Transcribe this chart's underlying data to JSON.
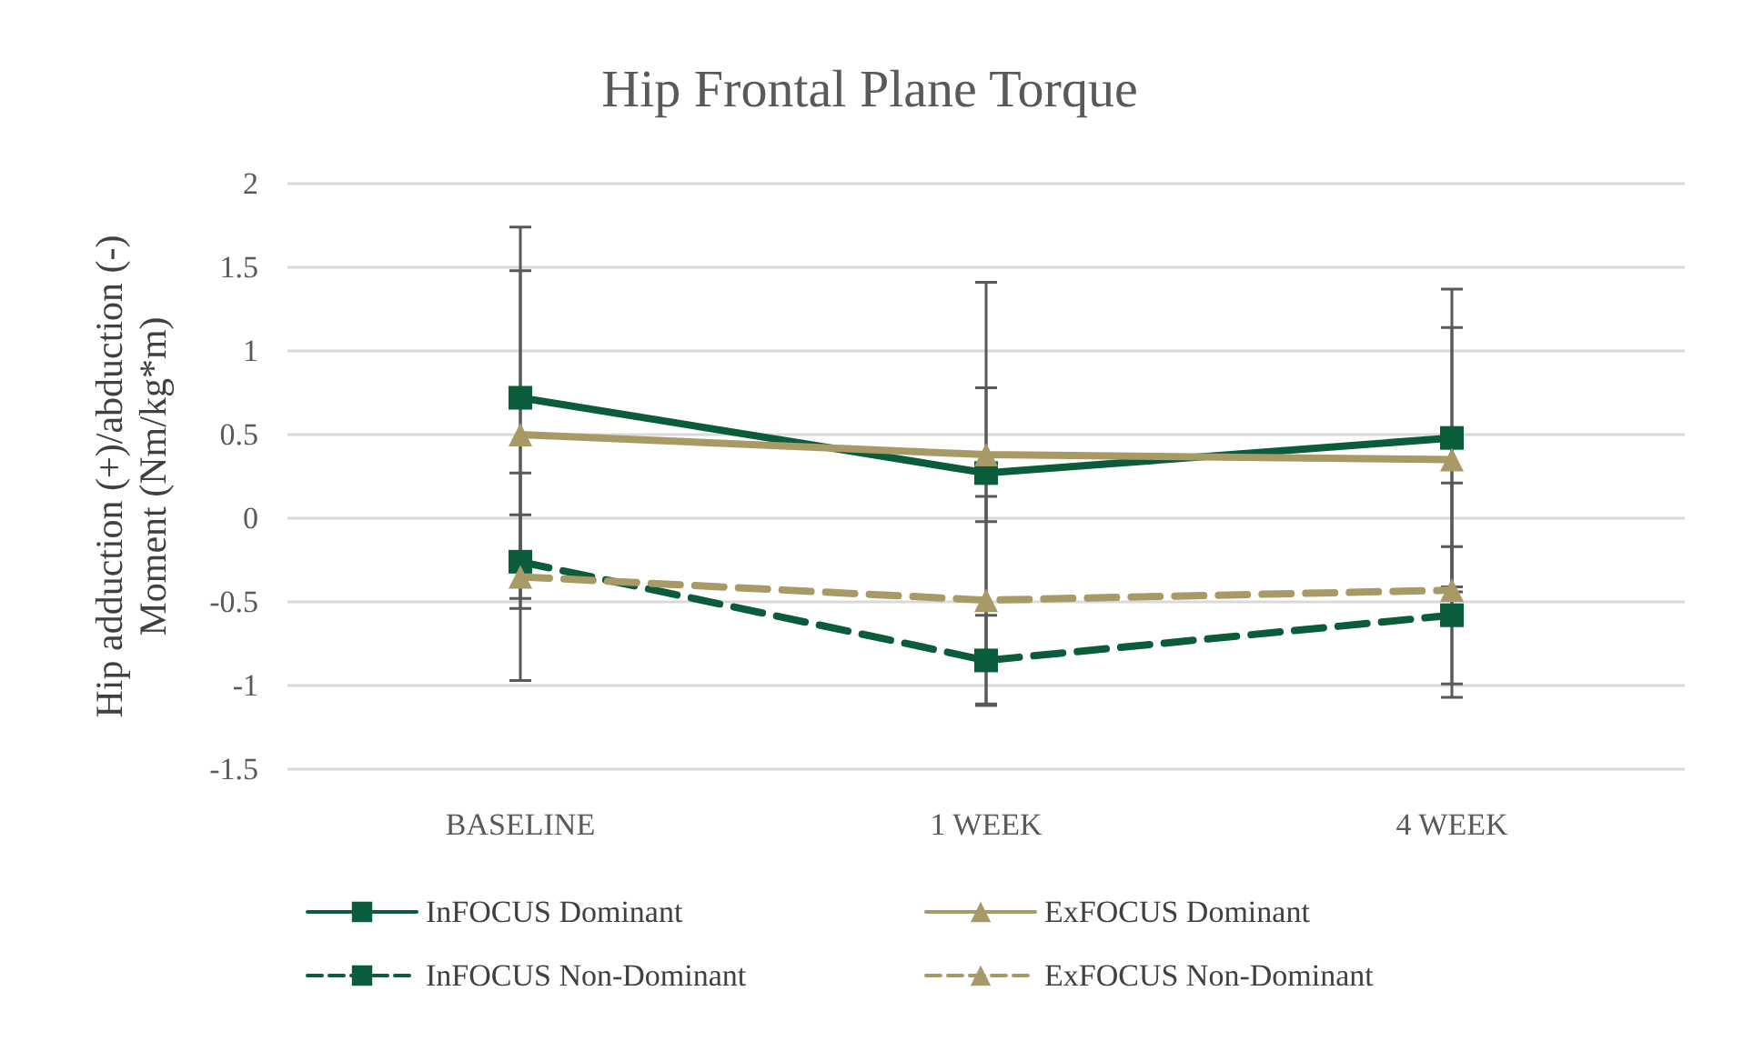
{
  "chart_data": {
    "type": "line",
    "title": "Hip Frontal Plane Torque",
    "ylabel": "Hip adduction (+)/abduction (-)\nMoment (Nm/kg*m)",
    "categories": [
      "BASELINE",
      "1 WEEK",
      "4 WEEK"
    ],
    "series": [
      {
        "name": "InFOCUS Dominant",
        "color": "#0b5c3a",
        "values": [
          0.72,
          0.27,
          0.48
        ],
        "errors": [
          1.02,
          1.14,
          0.89
        ],
        "marker": "square",
        "line_style": "solid"
      },
      {
        "name": "ExFOCUS Dominant",
        "color": "#a89a66",
        "values": [
          0.5,
          0.38,
          0.35
        ],
        "errors": [
          0.98,
          0.4,
          0.79
        ],
        "marker": "triangle",
        "line_style": "solid"
      },
      {
        "name": "InFOCUS Non-Dominant",
        "color": "#0b5c3a",
        "values": [
          -0.26,
          -0.85,
          -0.58
        ],
        "errors": [
          0.28,
          0.27,
          0.41
        ],
        "marker": "square",
        "line_style": "dashed"
      },
      {
        "name": "ExFOCUS Non-Dominant",
        "color": "#a89a66",
        "values": [
          -0.35,
          -0.49,
          -0.43
        ],
        "errors": [
          0.62,
          0.62,
          0.64
        ],
        "marker": "triangle",
        "line_style": "dashed"
      }
    ],
    "ylim": [
      -1.5,
      2
    ],
    "yticks": [
      -1.5,
      -1,
      -0.5,
      0,
      0.5,
      1,
      1.5,
      2
    ],
    "grid": "y",
    "legend": "bottom"
  }
}
